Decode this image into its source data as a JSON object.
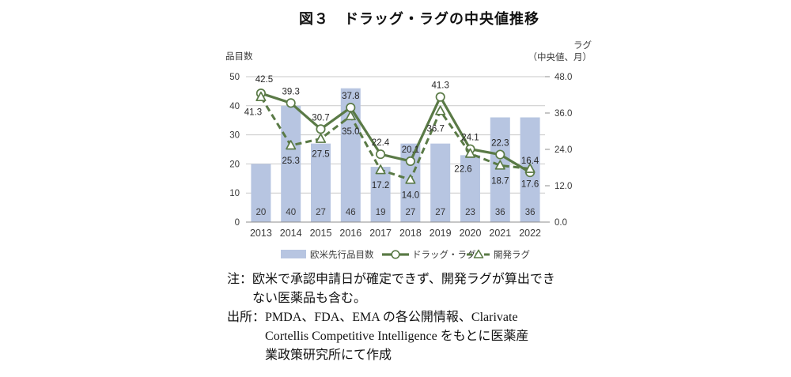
{
  "title": "図３　ドラッグ・ラグの中央値推移",
  "chart_data": {
    "type": "bar+line",
    "title": "図３　ドラッグ・ラグの中央値推移",
    "categories": [
      "2013",
      "2014",
      "2015",
      "2016",
      "2017",
      "2018",
      "2019",
      "2020",
      "2021",
      "2022"
    ],
    "bar_series": {
      "name": "欧米先行品目数",
      "axis": "left",
      "color": "#b7c5e1",
      "values": [
        20,
        40,
        27,
        46,
        19,
        27,
        27,
        23,
        36,
        36
      ]
    },
    "line_series": [
      {
        "name": "ドラッグ・ラグ",
        "axis": "right",
        "style": "solid",
        "marker": "circle",
        "color": "#5a7a46",
        "values": [
          42.5,
          39.3,
          30.7,
          37.8,
          22.4,
          20.1,
          41.3,
          24.1,
          22.3,
          16.4
        ],
        "labels": [
          "42.5",
          "39.3",
          "30.7",
          "37.8",
          "22.4",
          "20.1",
          "41.3",
          "24.1",
          "22.3",
          "16.4"
        ]
      },
      {
        "name": "開発ラグ",
        "axis": "right",
        "style": "dashed",
        "marker": "triangle",
        "color": "#5a7a46",
        "values": [
          41.3,
          25.3,
          27.5,
          35.0,
          17.2,
          14.0,
          36.7,
          22.6,
          18.7,
          17.6
        ],
        "labels": [
          "41.3",
          "25.3",
          "27.5",
          "35.0",
          "17.2",
          "14.0",
          "36.7",
          "22.6",
          "18.7",
          "17.6"
        ]
      }
    ],
    "left_axis": {
      "title": "品目数",
      "range": [
        0,
        50
      ],
      "tick_labels": [
        "0",
        "10",
        "20",
        "30",
        "40",
        "50"
      ],
      "tick_values": [
        0,
        10,
        20,
        30,
        40,
        50
      ]
    },
    "right_axis": {
      "title_line1": "ラグ",
      "title_line2": "（中央値、月）",
      "range": [
        0,
        48
      ],
      "tick_labels": [
        "0.0",
        "12.0",
        "24.0",
        "36.0",
        "48.0"
      ],
      "tick_values": [
        0,
        12,
        24,
        36,
        48
      ]
    },
    "grid": true,
    "legend_position": "bottom",
    "colors": {
      "bar": "#b7c5e1",
      "line": "#5a7a46",
      "gridline": "#c9c9c9",
      "axis_line": "#8c8c8c",
      "label_text": "#3a3a3a"
    }
  },
  "notes": [
    {
      "prefix": "注：",
      "text": "欧米で承認申請日が確定できず、開発ラグが算出でき\nない医薬品も含む。"
    },
    {
      "prefix": "出所：",
      "text": "PMDA、FDA、EMA の各公開情報、Clarivate\nCortellis Competitive Intelligence をもとに医薬産\n業政策研究所にて作成"
    }
  ]
}
